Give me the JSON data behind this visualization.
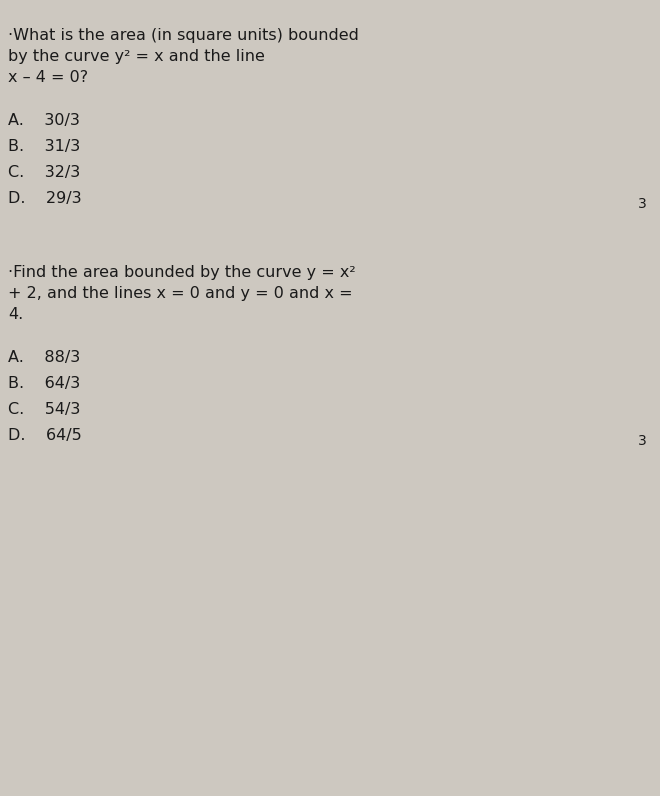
{
  "bg_color": "#cdc8c0",
  "text_color": "#1a1a1a",
  "q1_lines": [
    "·What is the area (in square units) bounded",
    "by the curve y² = x and the line",
    "x – 4 = 0?"
  ],
  "q1_options": [
    "A.    30/3",
    "B.    31/3",
    "C.    32/3",
    "D.    29/3"
  ],
  "q1_number": "3",
  "q2_lines": [
    "·Find the area bounded by the curve y = x²",
    "+ 2, and the lines x = 0 and y = 0 and x =",
    "4."
  ],
  "q2_options": [
    "A.    88/3",
    "B.    64/3",
    "C.    54/3",
    "D.    64/5"
  ],
  "q2_number": "3",
  "font_size_question": 11.5,
  "font_size_options": 11.5,
  "font_size_number": 10,
  "fig_width": 6.6,
  "fig_height": 7.96,
  "dpi": 100
}
